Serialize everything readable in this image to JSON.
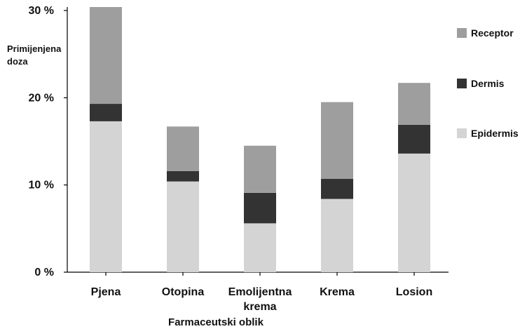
{
  "chart_data": {
    "type": "bar",
    "stacked": true,
    "ylabel_lines": [
      "Primijenjena",
      "doza"
    ],
    "xlabel": "Farmaceutski oblik",
    "categories": [
      "Pjena",
      "Otopina",
      "Emolijentna krema",
      "Krema",
      "Losion"
    ],
    "category_label_lines": [
      [
        "Pjena"
      ],
      [
        "Otopina"
      ],
      [
        "Emolijentna",
        "krema"
      ],
      [
        "Krema"
      ],
      [
        "Losion"
      ]
    ],
    "ylim": [
      0,
      30
    ],
    "yticks": [
      0,
      10,
      20,
      30
    ],
    "ytick_labels": [
      "0 %",
      "10 %",
      "20 %",
      "30 %"
    ],
    "series": [
      {
        "name": "Epidermis",
        "color": "#d4d4d4",
        "values": [
          17.3,
          10.4,
          5.6,
          8.4,
          13.6
        ]
      },
      {
        "name": "Dermis",
        "color": "#333333",
        "values": [
          2.0,
          1.2,
          3.5,
          2.3,
          3.3
        ]
      },
      {
        "name": "Receptor",
        "color": "#9e9e9e",
        "values": [
          11.1,
          5.1,
          5.4,
          8.8,
          4.8
        ]
      }
    ],
    "legend": {
      "placement": "right",
      "order": [
        "Receptor",
        "Dermis",
        "Epidermis"
      ]
    },
    "grid": false
  }
}
